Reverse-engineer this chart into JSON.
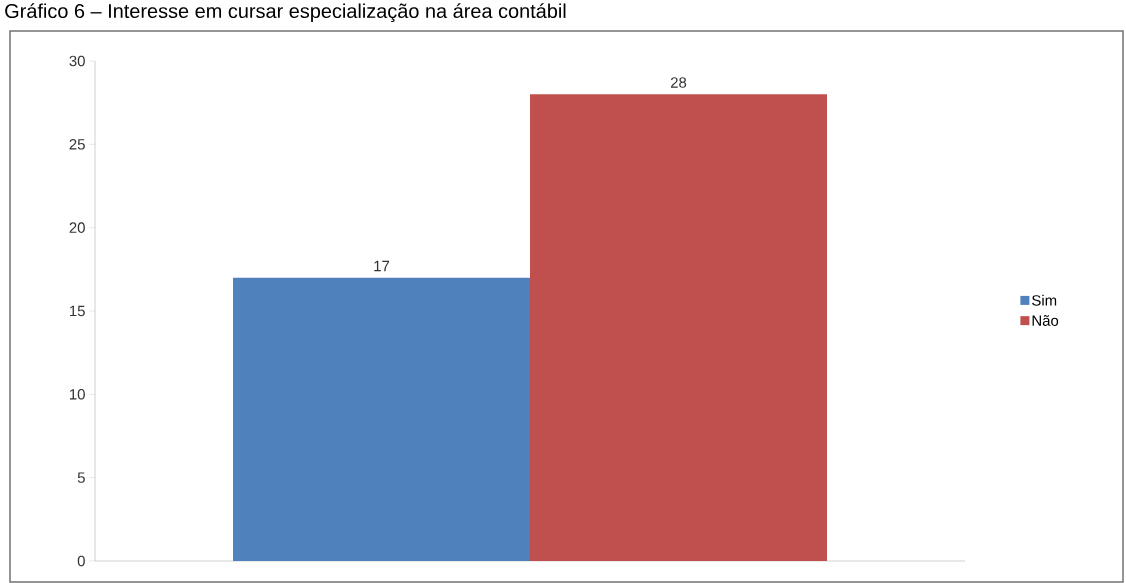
{
  "chart_data": {
    "type": "bar",
    "title": "Gráfico 6 – Interesse em cursar especialização na área contábil",
    "categories": [
      null
    ],
    "series": [
      {
        "name": "Sim",
        "color": "#4f81bd",
        "values": [
          17
        ]
      },
      {
        "name": "Não",
        "color": "#c0504d",
        "values": [
          28
        ]
      }
    ],
    "ylim": [
      0,
      30
    ],
    "yticks": [
      0,
      5,
      10,
      15,
      20,
      25,
      30
    ],
    "data_labels": true,
    "legend": "right"
  }
}
